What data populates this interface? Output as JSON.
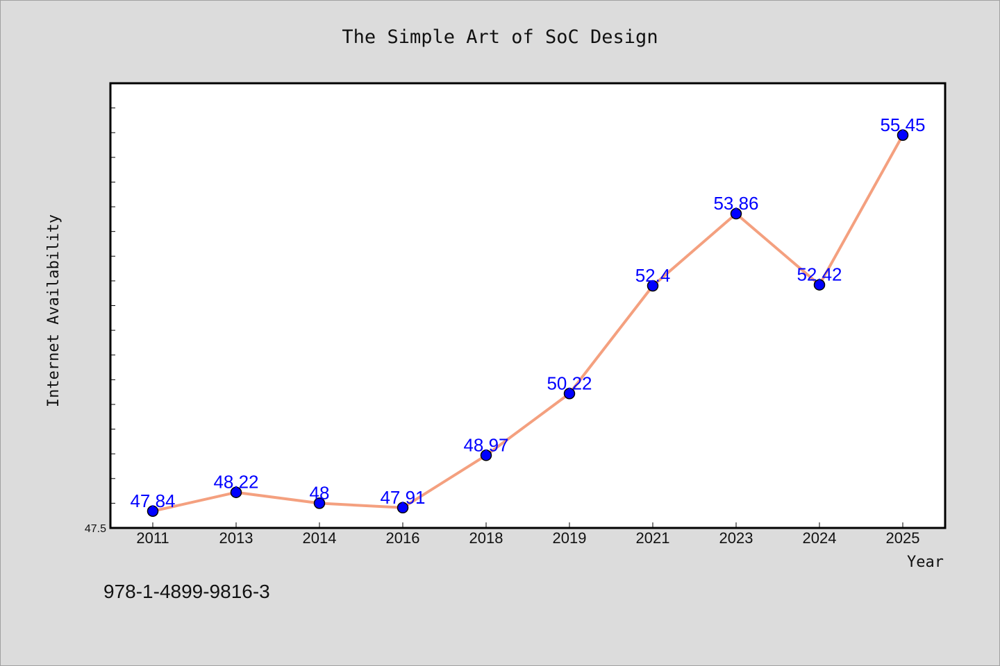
{
  "chart_data": {
    "type": "line",
    "title": "The Simple Art of SoC Design",
    "xlabel": "Year",
    "ylabel": "Internet Availability",
    "categories": [
      "2011",
      "2013",
      "2014",
      "2016",
      "2018",
      "2019",
      "2021",
      "2023",
      "2024",
      "2025"
    ],
    "series": [
      {
        "values": [
          47.84,
          48.22,
          48,
          47.91,
          48.97,
          50.22,
          52.4,
          53.86,
          52.42,
          55.45
        ],
        "labels": [
          "47.84",
          "48.22",
          "48",
          "47.91",
          "48.97",
          "50.22",
          "52.4",
          "53.86",
          "52.42",
          "55.45"
        ],
        "line_color": "#f4a07f",
        "marker_color": "#0000ff"
      }
    ],
    "ylim": [
      47.5,
      56.5
    ],
    "yticks_labeled": [
      "47.5"
    ],
    "grid": false,
    "legend": "none"
  },
  "footer": {
    "isbn": "978-1-4899-9816-3"
  }
}
